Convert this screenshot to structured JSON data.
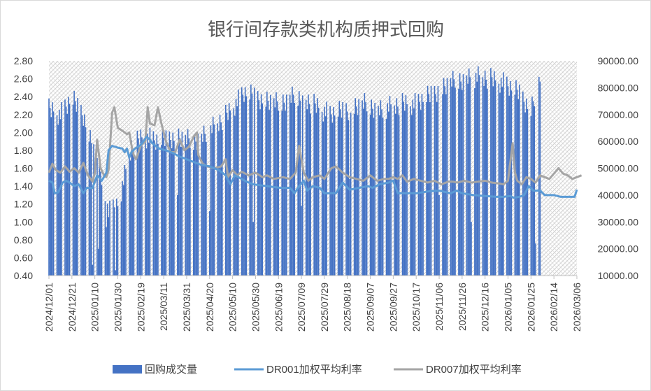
{
  "chart_data": {
    "type": "bar+line",
    "title": "银行间存款类机构质押式回购",
    "left_axis": {
      "ylim": [
        0.4,
        2.8
      ],
      "ticks": [
        "0.40",
        "0.60",
        "0.80",
        "1.00",
        "1.20",
        "1.40",
        "1.60",
        "1.80",
        "2.00",
        "2.20",
        "2.40",
        "2.60",
        "2.80"
      ]
    },
    "right_axis": {
      "ylim": [
        10000,
        90000
      ],
      "ticks": [
        "10000.00",
        "20000.00",
        "30000.00",
        "40000.00",
        "50000.00",
        "60000.00",
        "70000.00",
        "80000.00",
        "90000.00"
      ]
    },
    "x_ticks": [
      "2024/12/01",
      "2024/12/21",
      "2025/01/10",
      "2025/01/30",
      "2025/02/19",
      "2025/03/11",
      "2025/03/31",
      "2025/04/20",
      "2025/05/10",
      "2025/05/30",
      "2025/06/19",
      "2025/07/09",
      "2025/07/29",
      "2025/08/18",
      "2025/09/07",
      "2025/09/27",
      "2025/10/17",
      "2025/11/06",
      "2025/11/26",
      "2025/12/16",
      "2026/01/05",
      "2026/01/25",
      "2026/02/14",
      "2026/03/06"
    ],
    "x_range_days": [
      0,
      460
    ],
    "grid": "horizontal-none, hatched plot background",
    "legend_position": "bottom",
    "colors": {
      "volume": "#4472c4",
      "dr001": "#5b9bd5",
      "dr007": "#a5a5a5",
      "hatch": "#d9d9d9"
    },
    "series": [
      {
        "name": "回购成交量",
        "axis": "right",
        "style": "bar",
        "envelope": [
          [
            0,
            76000
          ],
          [
            10,
            74000
          ],
          [
            20,
            80000
          ],
          [
            30,
            74000
          ],
          [
            38,
            62000
          ],
          [
            45,
            52000
          ],
          [
            52,
            40000
          ],
          [
            62,
            44000
          ],
          [
            72,
            62000
          ],
          [
            82,
            66000
          ],
          [
            95,
            64000
          ],
          [
            110,
            66000
          ],
          [
            125,
            64000
          ],
          [
            140,
            68000
          ],
          [
            155,
            74000
          ],
          [
            170,
            82000
          ],
          [
            185,
            80000
          ],
          [
            200,
            78000
          ],
          [
            215,
            82000
          ],
          [
            230,
            78000
          ],
          [
            245,
            74000
          ],
          [
            260,
            76000
          ],
          [
            275,
            78000
          ],
          [
            290,
            76000
          ],
          [
            305,
            78000
          ],
          [
            320,
            78000
          ],
          [
            335,
            82000
          ],
          [
            350,
            86000
          ],
          [
            365,
            88000
          ],
          [
            380,
            88000
          ],
          [
            395,
            86000
          ],
          [
            410,
            82000
          ],
          [
            420,
            76000
          ],
          [
            428,
            88000
          ]
        ],
        "dips": [
          [
            38,
            14000
          ],
          [
            43,
            20000
          ],
          [
            50,
            28000
          ],
          [
            58,
            12000
          ],
          [
            68,
            16000
          ],
          [
            90,
            36000
          ],
          [
            112,
            40000
          ],
          [
            140,
            34000
          ],
          [
            178,
            30000
          ],
          [
            220,
            36000
          ],
          [
            262,
            46000
          ],
          [
            300,
            44000
          ],
          [
            340,
            40000
          ],
          [
            368,
            30000
          ],
          [
            390,
            28000
          ],
          [
            412,
            32000
          ],
          [
            424,
            22000
          ]
        ]
      },
      {
        "name": "DR001加权平均利率",
        "axis": "left",
        "style": "line",
        "points": [
          [
            0,
            1.46
          ],
          [
            3,
            1.44
          ],
          [
            5,
            1.32
          ],
          [
            8,
            1.33
          ],
          [
            12,
            1.44
          ],
          [
            15,
            1.46
          ],
          [
            18,
            1.44
          ],
          [
            22,
            1.4
          ],
          [
            26,
            1.42
          ],
          [
            30,
            1.32
          ],
          [
            33,
            1.38
          ],
          [
            38,
            1.38
          ],
          [
            42,
            1.52
          ],
          [
            46,
            1.46
          ],
          [
            50,
            1.55
          ],
          [
            52,
            1.8
          ],
          [
            55,
            1.85
          ],
          [
            60,
            1.83
          ],
          [
            64,
            1.82
          ],
          [
            66,
            1.78
          ],
          [
            68,
            1.82
          ],
          [
            70,
            1.72
          ],
          [
            72,
            1.78
          ],
          [
            75,
            1.82
          ],
          [
            80,
            1.86
          ],
          [
            85,
            1.95
          ],
          [
            88,
            1.92
          ],
          [
            90,
            1.88
          ],
          [
            92,
            1.86
          ],
          [
            96,
            1.82
          ],
          [
            102,
            1.8
          ],
          [
            108,
            1.77
          ],
          [
            114,
            1.73
          ],
          [
            120,
            1.7
          ],
          [
            126,
            1.67
          ],
          [
            132,
            1.64
          ],
          [
            140,
            1.62
          ],
          [
            148,
            1.58
          ],
          [
            154,
            1.52
          ],
          [
            158,
            1.42
          ],
          [
            162,
            1.52
          ],
          [
            168,
            1.48
          ],
          [
            172,
            1.45
          ],
          [
            178,
            1.42
          ],
          [
            184,
            1.41
          ],
          [
            190,
            1.4
          ],
          [
            196,
            1.39
          ],
          [
            202,
            1.38
          ],
          [
            210,
            1.38
          ],
          [
            214,
            1.32
          ],
          [
            218,
            1.4
          ],
          [
            222,
            1.46
          ],
          [
            225,
            1.35
          ],
          [
            230,
            1.4
          ],
          [
            236,
            1.38
          ],
          [
            240,
            1.32
          ],
          [
            250,
            1.32
          ],
          [
            256,
            1.44
          ],
          [
            262,
            1.36
          ],
          [
            270,
            1.38
          ],
          [
            278,
            1.4
          ],
          [
            282,
            1.38
          ],
          [
            288,
            1.42
          ],
          [
            296,
            1.44
          ],
          [
            300,
            1.46
          ],
          [
            304,
            1.32
          ],
          [
            310,
            1.32
          ],
          [
            320,
            1.32
          ],
          [
            330,
            1.34
          ],
          [
            340,
            1.35
          ],
          [
            350,
            1.32
          ],
          [
            355,
            1.35
          ],
          [
            360,
            1.32
          ],
          [
            370,
            1.3
          ],
          [
            380,
            1.29
          ],
          [
            390,
            1.28
          ],
          [
            396,
            1.28
          ],
          [
            402,
            1.29
          ],
          [
            405,
            1.27
          ],
          [
            410,
            1.28
          ],
          [
            414,
            1.3
          ],
          [
            418,
            1.4
          ],
          [
            422,
            1.35
          ],
          [
            428,
            1.35
          ],
          [
            432,
            1.3
          ],
          [
            440,
            1.3
          ],
          [
            446,
            1.28
          ],
          [
            452,
            1.28
          ],
          [
            458,
            1.28
          ],
          [
            460,
            1.36
          ]
        ]
      },
      {
        "name": "DR007加权平均利率",
        "axis": "left",
        "style": "line",
        "points": [
          [
            0,
            1.55
          ],
          [
            3,
            1.65
          ],
          [
            6,
            1.58
          ],
          [
            10,
            1.55
          ],
          [
            14,
            1.62
          ],
          [
            18,
            1.56
          ],
          [
            22,
            1.6
          ],
          [
            26,
            1.55
          ],
          [
            30,
            1.66
          ],
          [
            34,
            1.52
          ],
          [
            38,
            1.45
          ],
          [
            40,
            1.55
          ],
          [
            42,
            1.92
          ],
          [
            45,
            1.6
          ],
          [
            48,
            1.52
          ],
          [
            50,
            1.5
          ],
          [
            52,
            1.58
          ],
          [
            55,
            2.22
          ],
          [
            57,
            2.28
          ],
          [
            60,
            2.05
          ],
          [
            64,
            2.02
          ],
          [
            68,
            1.98
          ],
          [
            70,
            2.0
          ],
          [
            72,
            1.85
          ],
          [
            74,
            1.74
          ],
          [
            76,
            1.7
          ],
          [
            80,
            1.85
          ],
          [
            84,
            1.9
          ],
          [
            86,
            2.28
          ],
          [
            88,
            2.1
          ],
          [
            92,
            2.08
          ],
          [
            95,
            2.28
          ],
          [
            98,
            2.1
          ],
          [
            102,
            1.9
          ],
          [
            106,
            1.78
          ],
          [
            110,
            1.78
          ],
          [
            114,
            1.92
          ],
          [
            118,
            1.8
          ],
          [
            122,
            1.84
          ],
          [
            126,
            1.95
          ],
          [
            129,
            2.0
          ],
          [
            130,
            1.75
          ],
          [
            134,
            1.65
          ],
          [
            138,
            1.62
          ],
          [
            144,
            1.6
          ],
          [
            150,
            1.62
          ],
          [
            154,
            1.7
          ],
          [
            156,
            1.5
          ],
          [
            160,
            1.58
          ],
          [
            164,
            1.52
          ],
          [
            168,
            1.56
          ],
          [
            174,
            1.52
          ],
          [
            180,
            1.55
          ],
          [
            186,
            1.5
          ],
          [
            190,
            1.52
          ],
          [
            196,
            1.48
          ],
          [
            204,
            1.5
          ],
          [
            210,
            1.48
          ],
          [
            215,
            1.55
          ],
          [
            218,
            1.85
          ],
          [
            222,
            1.55
          ],
          [
            226,
            1.46
          ],
          [
            230,
            1.5
          ],
          [
            236,
            1.52
          ],
          [
            240,
            1.48
          ],
          [
            246,
            1.6
          ],
          [
            250,
            1.62
          ],
          [
            256,
            1.55
          ],
          [
            262,
            1.5
          ],
          [
            268,
            1.48
          ],
          [
            274,
            1.46
          ],
          [
            280,
            1.52
          ],
          [
            286,
            1.46
          ],
          [
            292,
            1.48
          ],
          [
            296,
            1.48
          ],
          [
            300,
            1.5
          ],
          [
            304,
            1.48
          ],
          [
            308,
            1.52
          ],
          [
            312,
            1.45
          ],
          [
            318,
            1.48
          ],
          [
            324,
            1.46
          ],
          [
            330,
            1.44
          ],
          [
            336,
            1.46
          ],
          [
            342,
            1.42
          ],
          [
            348,
            1.45
          ],
          [
            352,
            1.45
          ],
          [
            356,
            1.44
          ],
          [
            362,
            1.46
          ],
          [
            368,
            1.44
          ],
          [
            374,
            1.45
          ],
          [
            380,
            1.46
          ],
          [
            386,
            1.44
          ],
          [
            392,
            1.43
          ],
          [
            396,
            1.42
          ],
          [
            400,
            1.46
          ],
          [
            404,
            1.88
          ],
          [
            406,
            1.55
          ],
          [
            408,
            1.46
          ],
          [
            412,
            1.42
          ],
          [
            416,
            1.5
          ],
          [
            420,
            1.48
          ],
          [
            424,
            1.44
          ],
          [
            428,
            1.52
          ],
          [
            432,
            1.5
          ],
          [
            436,
            1.48
          ],
          [
            440,
            1.54
          ],
          [
            444,
            1.6
          ],
          [
            448,
            1.54
          ],
          [
            452,
            1.52
          ],
          [
            456,
            1.48
          ],
          [
            460,
            1.5
          ],
          [
            464,
            1.52
          ]
        ]
      }
    ],
    "legend": [
      "回购成交量",
      "DR001加权平均利率",
      "DR007加权平均利率"
    ]
  }
}
